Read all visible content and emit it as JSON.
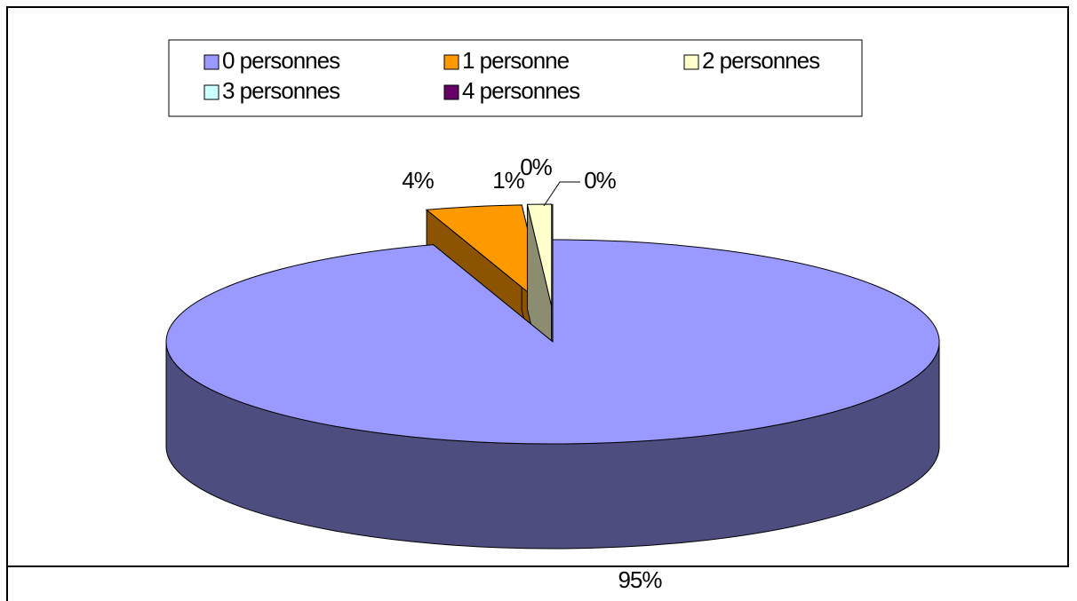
{
  "chart_data": {
    "type": "pie3d",
    "categories": [
      "0 personnes",
      "1 personne",
      "2 personnes",
      "3 personnes",
      "4 personnes"
    ],
    "values": [
      95,
      4,
      1,
      0,
      0
    ],
    "value_labels": [
      "95%",
      "4%",
      "1%",
      "0%",
      "0%"
    ],
    "colors": [
      "#9999ff",
      "#ff9900",
      "#ffffcc",
      "#ccffff",
      "#660066"
    ],
    "legend": "top"
  }
}
